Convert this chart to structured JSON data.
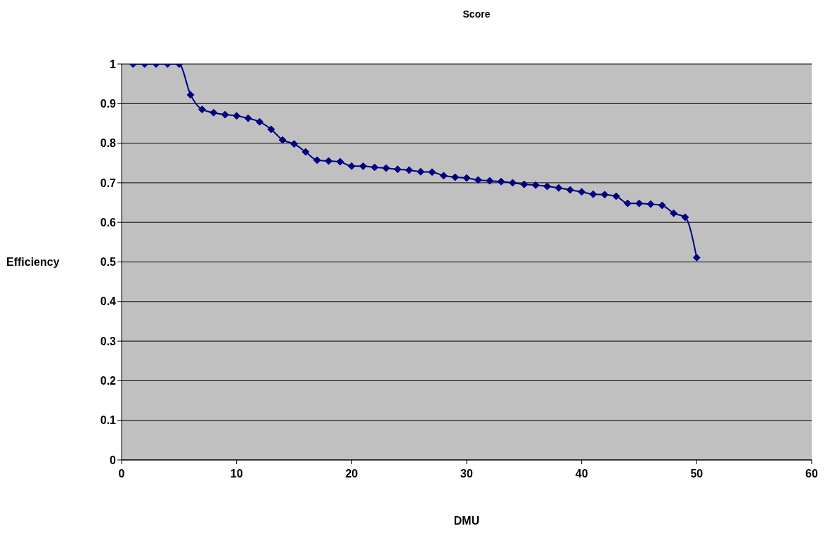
{
  "chart_data": {
    "type": "line",
    "title": "Score",
    "xlabel": "DMU",
    "ylabel": "Efficiency",
    "x": [
      1,
      2,
      3,
      4,
      5,
      6,
      7,
      8,
      9,
      10,
      11,
      12,
      13,
      14,
      15,
      16,
      17,
      18,
      19,
      20,
      21,
      22,
      23,
      24,
      25,
      26,
      27,
      28,
      29,
      30,
      31,
      32,
      33,
      34,
      35,
      36,
      37,
      38,
      39,
      40,
      41,
      42,
      43,
      44,
      45,
      46,
      47,
      48,
      49,
      50
    ],
    "series": [
      {
        "color": "#000080",
        "values": [
          1,
          1,
          1,
          1,
          1,
          0.922,
          0.885,
          0.877,
          0.872,
          0.869,
          0.863,
          0.854,
          0.835,
          0.808,
          0.798,
          0.778,
          0.757,
          0.755,
          0.753,
          0.742,
          0.742,
          0.739,
          0.737,
          0.734,
          0.732,
          0.728,
          0.727,
          0.718,
          0.714,
          0.712,
          0.707,
          0.705,
          0.703,
          0.7,
          0.696,
          0.694,
          0.691,
          0.687,
          0.682,
          0.677,
          0.671,
          0.67,
          0.666,
          0.648,
          0.648,
          0.646,
          0.643,
          0.623,
          0.613,
          0.511
        ]
      }
    ],
    "xlim": [
      0,
      60
    ],
    "xticks": [
      0,
      10,
      20,
      30,
      40,
      50,
      60
    ],
    "ylim": [
      0,
      1
    ],
    "yticks": [
      0,
      0.1,
      0.2,
      0.3,
      0.4,
      0.5,
      0.6,
      0.7,
      0.8,
      0.9,
      1
    ],
    "grid": "y",
    "marker": "diamond",
    "line_style": "solid",
    "legend": false
  }
}
